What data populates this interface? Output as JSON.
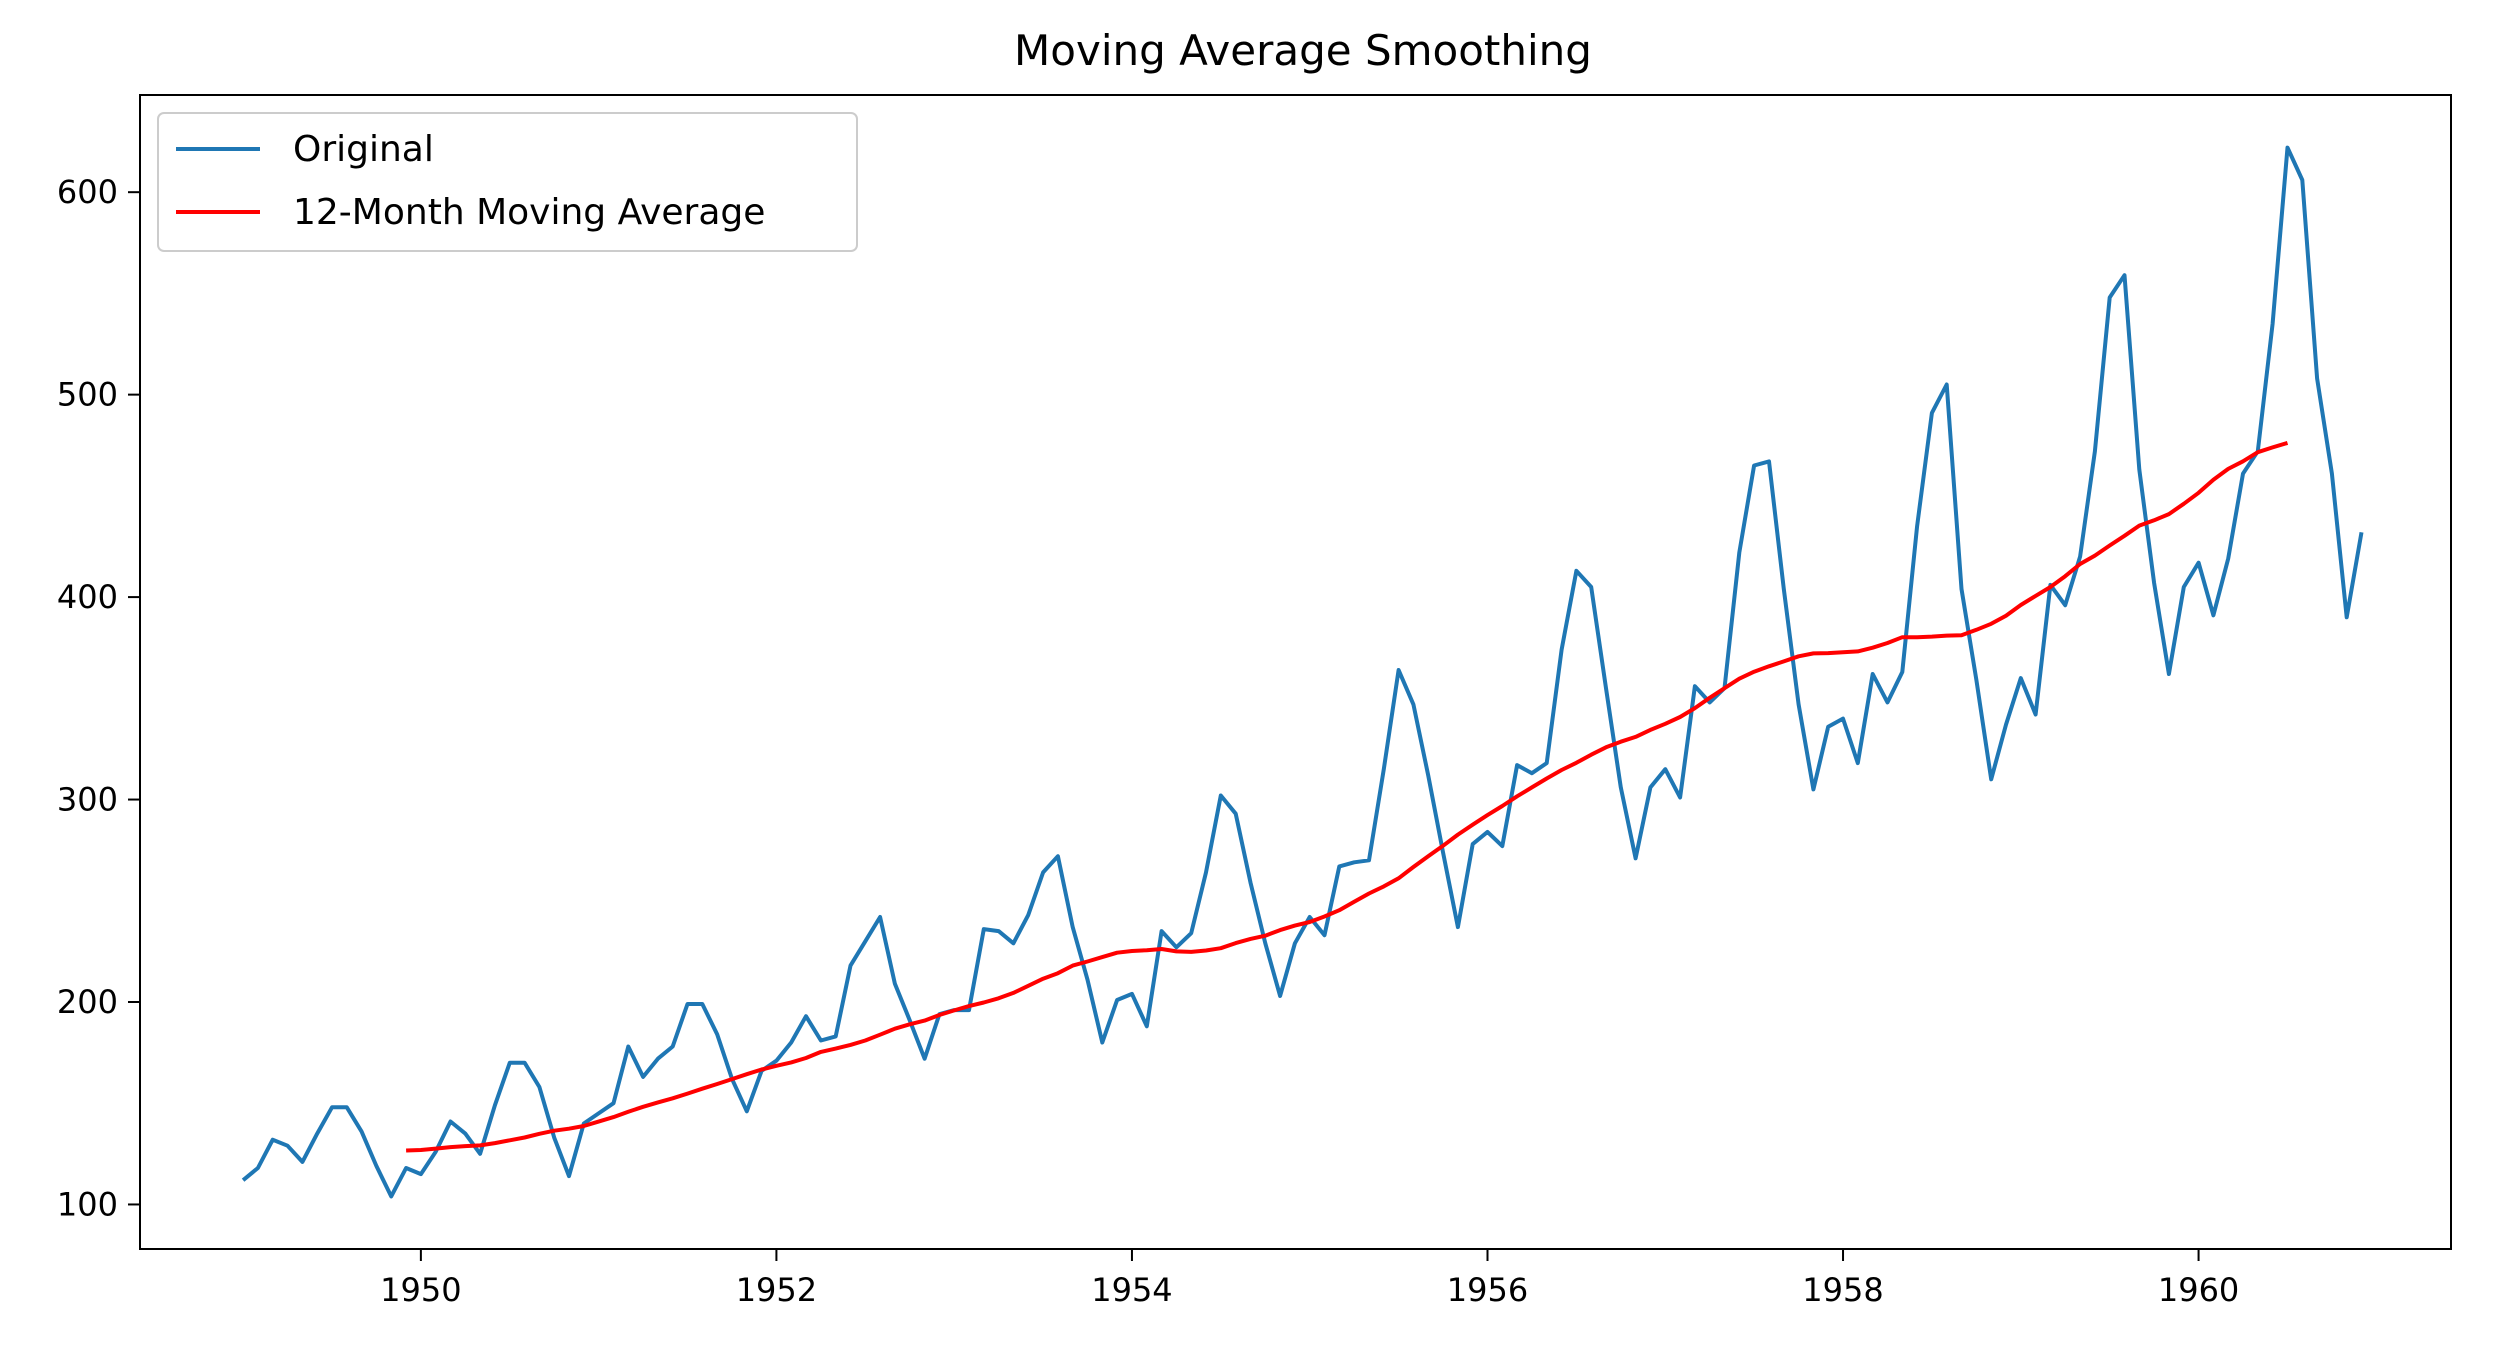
{
  "chart_data": {
    "type": "line",
    "title": "Moving Average Smoothing",
    "xlabel": "",
    "ylabel": "",
    "x_start": 1949.0,
    "x_step": 0.08333333,
    "xlim": [
      1948.42,
      1961.42
    ],
    "ylim": [
      78,
      648
    ],
    "x_ticks": [
      1950,
      1952,
      1954,
      1956,
      1958,
      1960
    ],
    "x_tick_labels": [
      "1950",
      "1952",
      "1954",
      "1956",
      "1958",
      "1960"
    ],
    "y_ticks": [
      100,
      200,
      300,
      400,
      500,
      600
    ],
    "y_tick_labels": [
      "100",
      "200",
      "300",
      "400",
      "500",
      "600"
    ],
    "grid": false,
    "legend_position": "top-left",
    "series": [
      {
        "name": "Original",
        "color": "#1f77b4",
        "values": [
          112,
          118,
          132,
          129,
          121,
          135,
          148,
          148,
          136,
          119,
          104,
          118,
          115,
          126,
          141,
          135,
          125,
          149,
          170,
          170,
          158,
          133,
          114,
          140,
          145,
          150,
          178,
          163,
          172,
          178,
          199,
          199,
          184,
          162,
          146,
          166,
          171,
          180,
          193,
          181,
          183,
          218,
          230,
          242,
          209,
          191,
          172,
          194,
          196,
          196,
          236,
          235,
          229,
          243,
          264,
          272,
          237,
          211,
          180,
          201,
          204,
          188,
          235,
          227,
          234,
          264,
          302,
          293,
          259,
          229,
          203,
          229,
          242,
          233,
          267,
          269,
          270,
          315,
          364,
          347,
          312,
          274,
          237,
          278,
          284,
          277,
          317,
          313,
          318,
          374,
          413,
          405,
          355,
          306,
          271,
          306,
          315,
          301,
          356,
          348,
          355,
          422,
          465,
          467,
          404,
          347,
          305,
          336,
          340,
          318,
          362,
          348,
          363,
          435,
          491,
          505,
          404,
          359,
          310,
          337,
          360,
          342,
          406,
          396,
          420,
          472,
          548,
          559,
          463,
          407,
          362,
          405,
          417,
          391,
          419,
          461,
          472,
          535,
          622,
          606,
          508,
          461,
          390,
          432
        ]
      },
      {
        "name": "12-Month Moving Average",
        "color": "#ff0000",
        "start_index": 11,
        "values": [
          126.67,
          126.92,
          127.58,
          128.33,
          128.83,
          129.17,
          130.33,
          131.67,
          133.08,
          134.92,
          136.42,
          137.42,
          138.75,
          140.92,
          143.17,
          145.75,
          148.25,
          150.42,
          152.42,
          154.75,
          157.17,
          159.5,
          161.92,
          164.33,
          166.67,
          168.5,
          170.17,
          172.33,
          175.33,
          177.0,
          178.83,
          181.0,
          183.83,
          186.83,
          189.0,
          190.83,
          193.58,
          195.83,
          198.0,
          199.75,
          201.83,
          204.5,
          208.0,
          211.5,
          214.25,
          218.0,
          220.0,
          222.17,
          224.33,
          225.17,
          225.58,
          226.17,
          225.0,
          224.75,
          225.42,
          226.58,
          229.08,
          231.17,
          232.75,
          235.5,
          237.75,
          239.5,
          242.25,
          245.33,
          249.5,
          253.58,
          257.08,
          261.08,
          266.67,
          272.0,
          277.17,
          282.67,
          287.58,
          292.33,
          296.83,
          301.58,
          306.0,
          310.42,
          314.58,
          318.17,
          322.17,
          325.83,
          328.58,
          330.92,
          334.42,
          337.42,
          340.75,
          345.17,
          350.25,
          355.0,
          359.67,
          363.17,
          365.83,
          368.25,
          370.75,
          372.17,
          372.33,
          372.75,
          373.17,
          375.0,
          377.33,
          380.17,
          380.17,
          380.5,
          381.0,
          381.17,
          383.83,
          386.83,
          390.83,
          396.08,
          400.58,
          405.0,
          410.33,
          416.33,
          420.5,
          425.5,
          430.25,
          435.33,
          437.92,
          441.0,
          446.08,
          451.5,
          458.0,
          463.33,
          467.08,
          471.58,
          473.92,
          476.17
        ]
      }
    ]
  }
}
